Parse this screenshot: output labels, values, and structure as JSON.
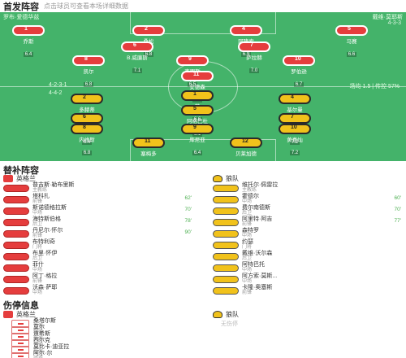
{
  "header": {
    "title": "首发阵容",
    "subtitle": "点击球员可查看本场详细数据"
  },
  "pitch": {
    "home_coach": "罗布·爱德华兹",
    "away_coach": "戴维·莫耶斯",
    "home_form": "4-3-3",
    "away_form": "4-4-2",
    "stat_left": "4-2-3-1",
    "stat_right": "场均 1.5 | 传控 57%",
    "home_players": [
      {
        "num": "1",
        "name": "乔斯",
        "rate": "6.4"
      },
      {
        "num": "2",
        "name": "桑松",
        "rate": "6.8"
      },
      {
        "num": "4",
        "name": "阿隆索",
        "rate": "6.9"
      },
      {
        "num": "5",
        "name": "马赛",
        "rate": "6.6"
      },
      {
        "num": "6",
        "name": "B.威廉斯",
        "rate": "7.1"
      },
      {
        "num": "7",
        "name": "萨拉赫",
        "rate": "7.0"
      },
      {
        "num": "8",
        "name": "凯尔",
        "rate": "6.8"
      },
      {
        "num": "9",
        "name": "克罗斯",
        "rate": "6.5"
      },
      {
        "num": "10",
        "name": "罗伯逊",
        "rate": "6.7"
      },
      {
        "num": "11",
        "name": "安德森",
        "rate": "7.3"
      },
      {
        "num": "14",
        "name": "哈维",
        "rate": "6.9"
      }
    ],
    "away_players": [
      {
        "num": "1",
        "name": "萨",
        "rate": "6.6"
      },
      {
        "num": "2",
        "name": "多赫蒂",
        "rate": "6.3"
      },
      {
        "num": "4",
        "name": "基尔曼",
        "rate": "6.7"
      },
      {
        "num": "5",
        "name": "阿格巴杜",
        "rate": "6.1"
      },
      {
        "num": "6",
        "name": "莱米纳",
        "rate": "6.4"
      },
      {
        "num": "7",
        "name": "内托",
        "rate": "7.2"
      },
      {
        "num": "8",
        "name": "内维斯",
        "rate": "6.8"
      },
      {
        "num": "9",
        "name": "库尼亚",
        "rate": "6.4"
      },
      {
        "num": "10",
        "name": "黄喜灿",
        "rate": "7.2"
      },
      {
        "num": "11",
        "name": "塞梅多",
        "rate": "6.5"
      },
      {
        "num": "12",
        "name": "贝莱加德",
        "rate": "6.7"
      }
    ]
  },
  "subs": {
    "title": "替补阵容",
    "home_team": "英格兰",
    "away_team": "狼队",
    "home": [
      {
        "name": "普吉斯·勒布里斯",
        "pos": "主教练",
        "min": ""
      },
      {
        "name": "塔科扎",
        "pos": "前锋",
        "min": "62'"
      },
      {
        "name": "斯诺德格拉斯",
        "pos": "中场",
        "min": "70'"
      },
      {
        "name": "海特斯伯格",
        "pos": "后卫",
        "min": "78'"
      },
      {
        "name": "丹尼尔·怀尔",
        "pos": "前锋",
        "min": "90'"
      },
      {
        "name": "布特利奇",
        "pos": "门将",
        "min": ""
      },
      {
        "name": "布里·怀伊",
        "pos": "后卫",
        "min": ""
      },
      {
        "name": "菲什",
        "pos": "中场",
        "min": ""
      },
      {
        "name": "阿丁·格拉",
        "pos": "前锋",
        "min": ""
      },
      {
        "name": "沃森·萨耶",
        "pos": "中场",
        "min": ""
      }
    ],
    "away": [
      {
        "name": "维托尔·佩雷拉",
        "pos": "主教练",
        "min": ""
      },
      {
        "name": "霍德尔",
        "pos": "中场",
        "min": "60'"
      },
      {
        "name": "费尔南德斯",
        "pos": "后卫",
        "min": "70'"
      },
      {
        "name": "阿里特·阿吉",
        "pos": "前锋",
        "min": "77'"
      },
      {
        "name": "森特罗",
        "pos": "中场",
        "min": ""
      },
      {
        "name": "约瑟",
        "pos": "门将",
        "min": ""
      },
      {
        "name": "戴维·沃尔森",
        "pos": "后卫",
        "min": ""
      },
      {
        "name": "阿特巴托",
        "pos": "中场",
        "min": ""
      },
      {
        "name": "阿方索·莫斯...",
        "pos": "中场",
        "min": ""
      },
      {
        "name": "卡隆·奥塞斯",
        "pos": "前锋",
        "min": ""
      }
    ]
  },
  "injuries": {
    "title": "伤停信息",
    "home_team": "英格兰",
    "away_team": "狼队",
    "away_none": "无伤停",
    "home": [
      {
        "name": "桑塔尔斯",
        "pos": "受伤"
      },
      {
        "name": "莫尔",
        "pos": "受伤"
      },
      {
        "name": "道希斯",
        "pos": "受伤"
      },
      {
        "name": "西尔克",
        "pos": "受伤"
      },
      {
        "name": "莫比卡·迪亚拉",
        "pos": "受伤"
      },
      {
        "name": "阿尔·尔",
        "pos": "停赛"
      }
    ]
  },
  "colors": {
    "pitch": "#44b36a",
    "home": "#e53d3d",
    "away": "#f1c21b"
  }
}
